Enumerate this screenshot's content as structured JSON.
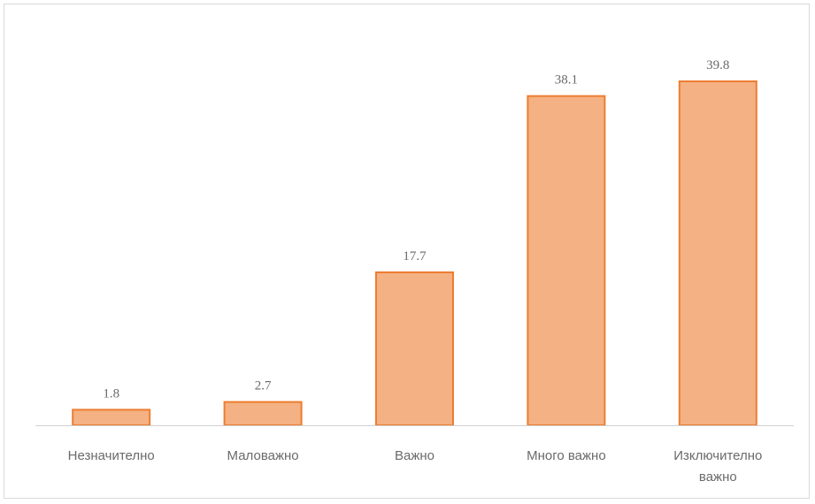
{
  "chart_data": {
    "type": "bar",
    "categories": [
      [
        "Незначително"
      ],
      [
        "Маловажно"
      ],
      [
        "Важно"
      ],
      [
        "Много важно"
      ],
      [
        "Изключително",
        "важно"
      ]
    ],
    "values": [
      1.8,
      2.7,
      17.7,
      38.1,
      39.8
    ],
    "value_labels": [
      "1.8",
      "2.7",
      "17.7",
      "38.1",
      "39.8"
    ],
    "title": "",
    "xlabel": "",
    "ylabel": "",
    "ylim": [
      0,
      45
    ],
    "grid": false,
    "legend": "none",
    "colors": {
      "bar_fill": "#f4b183",
      "bar_stroke": "#ed7d31"
    }
  }
}
